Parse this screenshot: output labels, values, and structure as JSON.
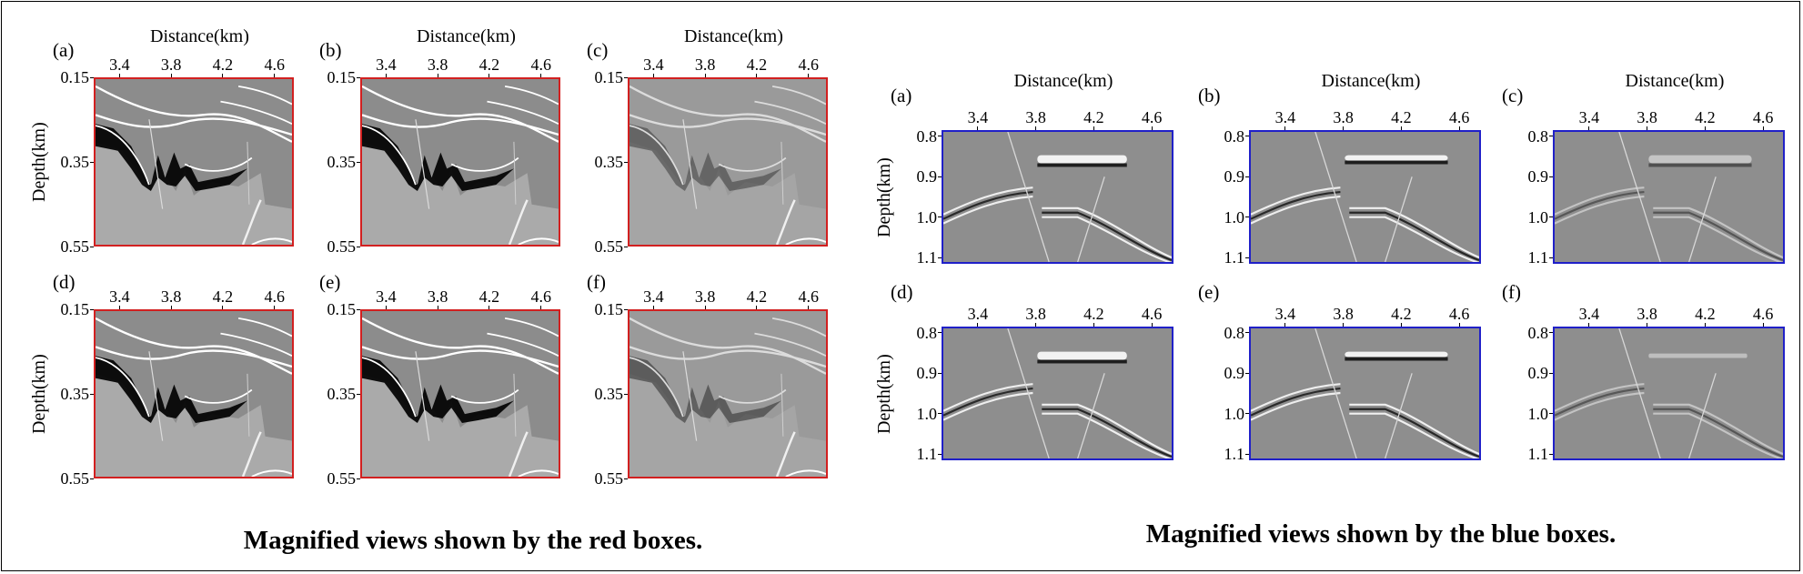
{
  "caption_left": "Magnified views shown by the red boxes.",
  "caption_right": "Magnified views shown by the blue boxes.",
  "x_axis_title": "Distance(km)",
  "y_axis_title": "Depth(km)",
  "x_ticks": [
    "3.4",
    "3.8",
    "4.2",
    "4.6"
  ],
  "red_group": {
    "y_ticks": [
      "0.15",
      "0.35",
      "0.55"
    ],
    "border_color": "#d22020",
    "panels": [
      {
        "label": "(a)"
      },
      {
        "label": "(b)"
      },
      {
        "label": "(c)"
      },
      {
        "label": "(d)"
      },
      {
        "label": "(e)"
      },
      {
        "label": "(f)"
      }
    ]
  },
  "blue_group": {
    "y_ticks": [
      "0.8",
      "0.9",
      "1.0",
      "1.1"
    ],
    "border_color": "#2020c8",
    "panels": [
      {
        "label": "(a)"
      },
      {
        "label": "(b)"
      },
      {
        "label": "(c)"
      },
      {
        "label": "(d)"
      },
      {
        "label": "(e)"
      },
      {
        "label": "(f)"
      }
    ]
  }
}
